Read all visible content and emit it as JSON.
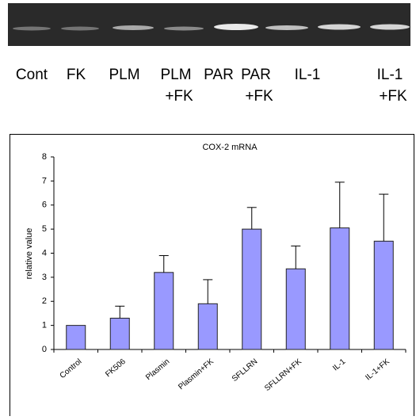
{
  "gel_lanes": [
    [
      "Cont"
    ],
    [
      "FK"
    ],
    [
      "PLM"
    ],
    [
      "PLM",
      "+FK"
    ],
    [
      "PAR"
    ],
    [
      "PAR",
      "+FK"
    ],
    [
      "IL-1"
    ],
    [
      "IL-1",
      "+FK"
    ]
  ],
  "chart_data": {
    "type": "bar",
    "title": "COX-2 mRNA",
    "y_label": "relative value",
    "categories": [
      "Control",
      "FK506",
      "Plasmin",
      "Plasmin+FK",
      "SFLLRN",
      "SFLLRN+FK",
      "IL-1",
      "IL-1+FK"
    ],
    "values": [
      1,
      1.3,
      3.2,
      1.9,
      5.0,
      3.35,
      5.05,
      4.5
    ],
    "errors": [
      0,
      0.5,
      0.7,
      1.0,
      0.9,
      0.95,
      1.9,
      1.95
    ],
    "color": "#9999ff",
    "ylim": [
      0,
      8
    ],
    "yticks": [
      0,
      1,
      2,
      3,
      4,
      5,
      6,
      7,
      8
    ]
  }
}
